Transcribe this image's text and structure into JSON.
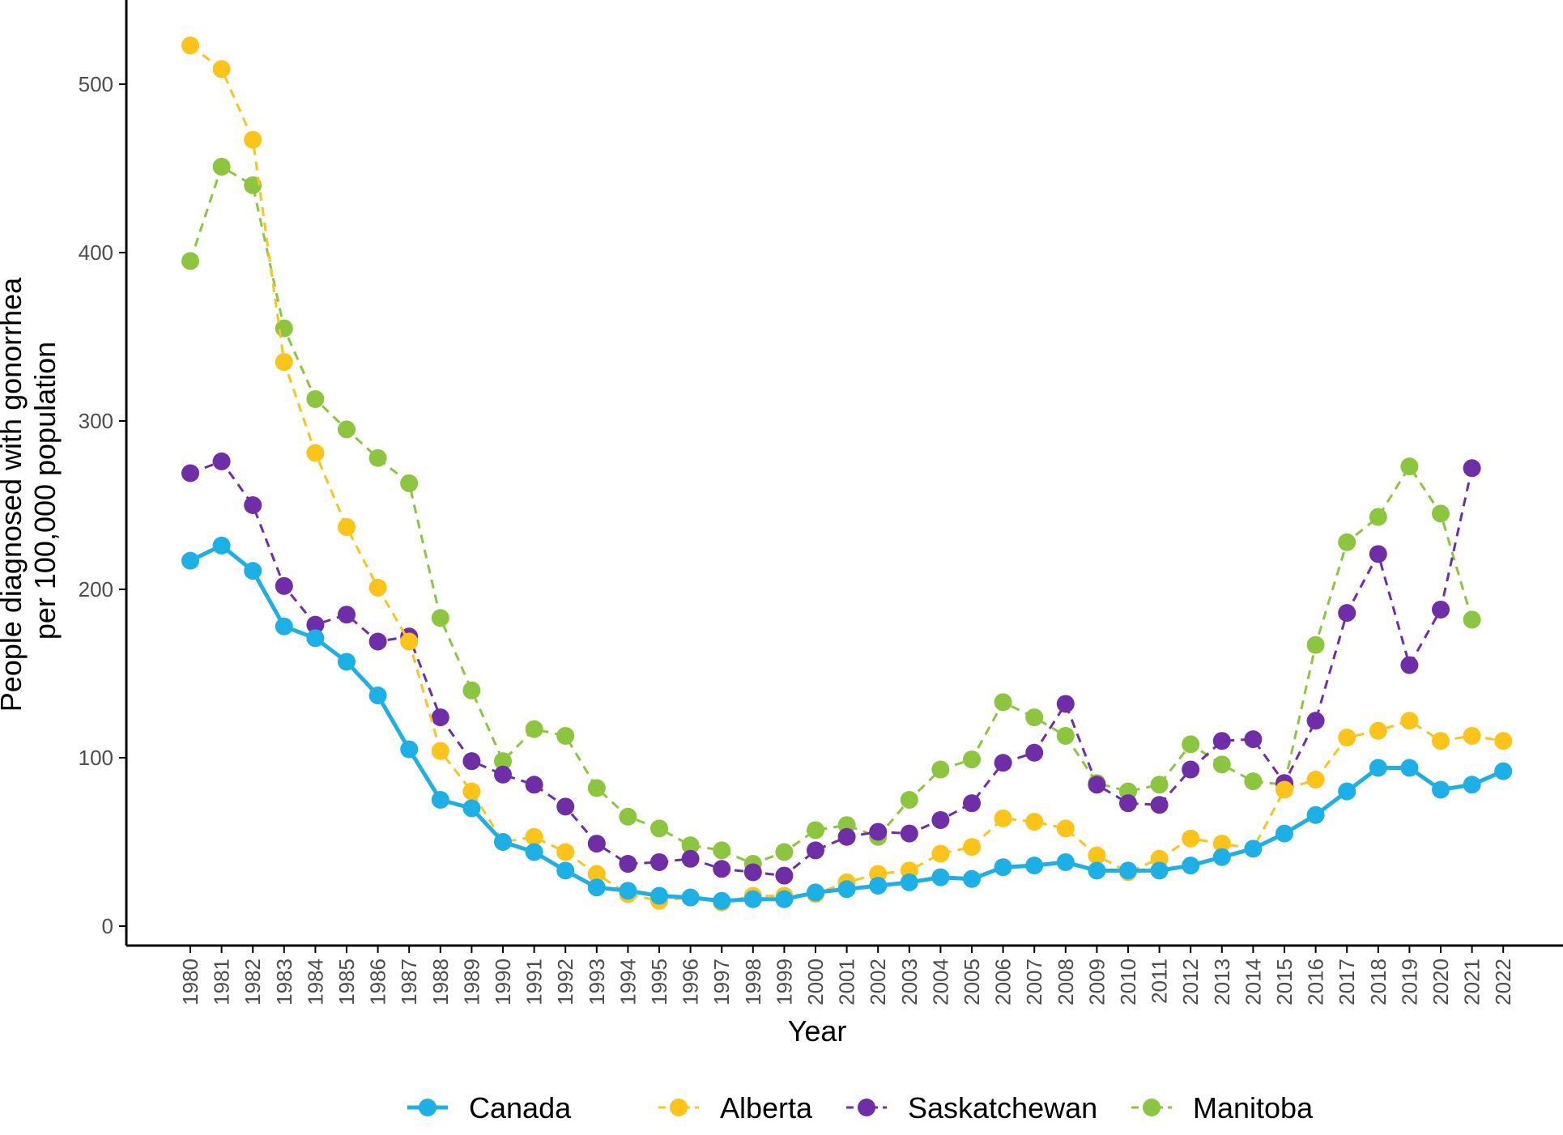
{
  "chart_data": {
    "type": "line",
    "xlabel": "Year",
    "ylabel_lines": [
      "People diagnosed with gonorrhea",
      "per 100,000 population"
    ],
    "ylim": [
      0,
      540
    ],
    "yticks": [
      0,
      100,
      200,
      300,
      400,
      500
    ],
    "grid": false,
    "legend_position": "bottom",
    "x": [
      "1980",
      "1981",
      "1982",
      "1983",
      "1984",
      "1985",
      "1986",
      "1987",
      "1988",
      "1989",
      "1990",
      "1991",
      "1992",
      "1993",
      "1994",
      "1995",
      "1996",
      "1997",
      "1998",
      "1999",
      "2000",
      "2001",
      "2002",
      "2003",
      "2004",
      "2005",
      "2006",
      "2007",
      "2008",
      "2009",
      "2010",
      "2011",
      "2012",
      "2013",
      "2014",
      "2015",
      "2016",
      "2017",
      "2018",
      "2019",
      "2020",
      "2021",
      "2022"
    ],
    "series": [
      {
        "name": "Canada",
        "color": "#1cb0e6",
        "style": "solid",
        "values": [
          217,
          226,
          211,
          178,
          171,
          157,
          137,
          105,
          75,
          70,
          50,
          44,
          33,
          23,
          21,
          18,
          17,
          15,
          16,
          16,
          20,
          22,
          24,
          26,
          29,
          28,
          35,
          36,
          38,
          33,
          33,
          33,
          36,
          41,
          46,
          55,
          66,
          80,
          94,
          94,
          81,
          84,
          92
        ]
      },
      {
        "name": "Alberta",
        "color": "#fcc419",
        "style": "dashed",
        "values": [
          523,
          509,
          467,
          335,
          281,
          237,
          201,
          169,
          104,
          80,
          50,
          53,
          44,
          31,
          19,
          15,
          17,
          14,
          18,
          18,
          19,
          26,
          31,
          33,
          43,
          47,
          64,
          62,
          58,
          42,
          32,
          40,
          52,
          49,
          46,
          81,
          87,
          112,
          116,
          122,
          110,
          113,
          110
        ]
      },
      {
        "name": "Saskatchewan",
        "color": "#6f2da8",
        "style": "dashed",
        "values": [
          269,
          276,
          250,
          202,
          179,
          185,
          169,
          172,
          124,
          98,
          90,
          84,
          71,
          49,
          37,
          38,
          40,
          34,
          32,
          30,
          45,
          53,
          56,
          55,
          63,
          73,
          97,
          103,
          132,
          84,
          73,
          72,
          93,
          110,
          111,
          85,
          122,
          186,
          221,
          155,
          188,
          272,
          null
        ]
      },
      {
        "name": "Manitoba",
        "color": "#8cc63f",
        "style": "dashed",
        "values": [
          395,
          451,
          440,
          355,
          313,
          295,
          278,
          263,
          183,
          140,
          98,
          117,
          113,
          82,
          65,
          58,
          48,
          45,
          37,
          44,
          57,
          60,
          53,
          75,
          93,
          99,
          133,
          124,
          113,
          85,
          80,
          84,
          108,
          96,
          86,
          84,
          167,
          228,
          243,
          273,
          245,
          182,
          null
        ]
      }
    ]
  }
}
